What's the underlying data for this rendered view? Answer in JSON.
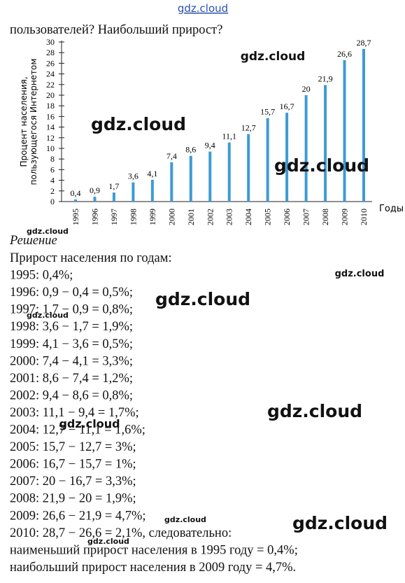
{
  "header": {
    "site": "gdz.cloud",
    "question": "пользователей? Наибольший прирост?"
  },
  "chart_data": {
    "type": "bar",
    "ylabel": [
      "Процент населения,",
      "пользующегося Интернетом"
    ],
    "xlabel": "Годы",
    "categories": [
      "1995",
      "1996",
      "1997",
      "1998",
      "1999",
      "2000",
      "2001",
      "2002",
      "2003",
      "2004",
      "2005",
      "2006",
      "2007",
      "2008",
      "2009",
      "2010"
    ],
    "values": [
      0.4,
      0.9,
      1.7,
      3.6,
      4.1,
      7.4,
      8.6,
      9.4,
      11.1,
      12.7,
      15.7,
      16.7,
      20,
      21.9,
      26.6,
      28.7
    ],
    "value_labels": [
      "0,4",
      "0,9",
      "1,7",
      "3,6",
      "4,1",
      "7,4",
      "8,6",
      "9,4",
      "11,1",
      "12,7",
      "15,7",
      "16,7",
      "20",
      "21,9",
      "26,6",
      "28,7"
    ],
    "color": "#3d9bd3",
    "ylim": [
      0,
      30
    ],
    "yticks": [
      0,
      2,
      4,
      6,
      8,
      10,
      12,
      14,
      16,
      18,
      20,
      22,
      24,
      26,
      28,
      30
    ],
    "grid": false
  },
  "solution": {
    "heading": "Решение",
    "lines": [
      "Прирост населения по годам:",
      "1995: 0,4%;",
      "1996: 0,9 − 0,4 = 0,5%;",
      "1997: 1,7 − 0,9 = 0,8%;",
      "1998: 3,6 − 1,7 = 1,9%;",
      "1999: 4,1 − 3,6 = 0,5%;",
      "2000: 7,4 − 4,1 = 3,3%;",
      "2001: 8,6 − 7,4 = 1,2%;",
      "2002: 9,4 − 8,6 = 0,8%;",
      "2003: 11,1 − 9,4 = 1,7%;",
      "2004: 12,7 − 11,1 = 1,6%;",
      "2005: 15,7 − 12,7 = 3%;",
      "2006: 16,7 − 15,7 = 1%;",
      "2007: 20 − 16,7 = 3,3%;",
      "2008: 21,9 − 20 = 1,9%;",
      "2009: 26,6 − 21,9 = 4,7%;",
      "2010: 28,7 − 26,6 = 2,1%, следовательно:",
      "наименьший прирост населения в 1995 году = 0,4%;",
      "наибольший прирост населения в 2009 году = 4,7%."
    ]
  },
  "watermarks": [
    "gdz.cloud",
    "gdz.cloud",
    "gdz.cloud",
    "gdz.cloud",
    "gdz.cloud",
    "gdz.cloud",
    "gdz.cloud",
    "gdz.cloud",
    "gdz.cloud",
    "gdz.cloud",
    "gdz.cloud",
    "gdz.cloud"
  ]
}
